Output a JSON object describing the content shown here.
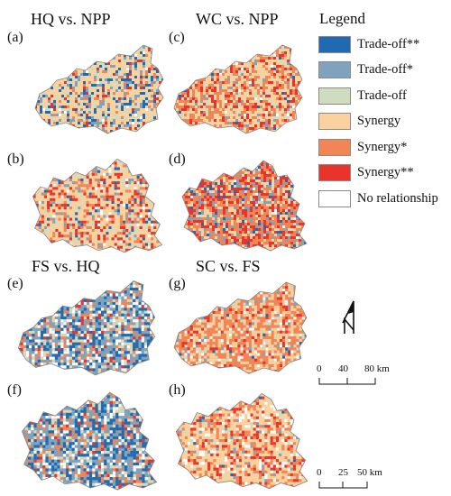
{
  "group_titles": {
    "hq_npp": "HQ vs. NPP",
    "wc_npp": "WC vs. NPP",
    "fs_hq": "FS vs. HQ",
    "sc_fs": "SC vs. FS"
  },
  "panels": [
    {
      "id": "a",
      "label": "(a)",
      "shape": "A",
      "mix": [
        0.12,
        0.12,
        0.16,
        0.45,
        0.08,
        0.04,
        0.03
      ]
    },
    {
      "id": "b",
      "label": "(b)",
      "shape": "B",
      "mix": [
        0.05,
        0.05,
        0.12,
        0.48,
        0.14,
        0.13,
        0.03
      ]
    },
    {
      "id": "c",
      "label": "(c)",
      "shape": "A",
      "mix": [
        0.01,
        0.03,
        0.08,
        0.4,
        0.3,
        0.16,
        0.02
      ]
    },
    {
      "id": "d",
      "label": "(d)",
      "shape": "B",
      "mix": [
        0.05,
        0.1,
        0.06,
        0.14,
        0.36,
        0.27,
        0.02
      ]
    },
    {
      "id": "e",
      "label": "(e)",
      "shape": "A",
      "mix": [
        0.22,
        0.26,
        0.12,
        0.08,
        0.12,
        0.05,
        0.15
      ]
    },
    {
      "id": "f",
      "label": "(f)",
      "shape": "B",
      "mix": [
        0.26,
        0.28,
        0.08,
        0.06,
        0.14,
        0.04,
        0.14
      ]
    },
    {
      "id": "g",
      "label": "(g)",
      "shape": "A",
      "mix": [
        0.01,
        0.03,
        0.06,
        0.3,
        0.42,
        0.1,
        0.08
      ]
    },
    {
      "id": "h",
      "label": "(h)",
      "shape": "B",
      "mix": [
        0.01,
        0.02,
        0.05,
        0.46,
        0.24,
        0.12,
        0.1
      ]
    }
  ],
  "legend": {
    "title": "Legend",
    "items": [
      {
        "label": "Trade-off**",
        "color": "#1f6ab0"
      },
      {
        "label": "Trade-off*",
        "color": "#7fa3be"
      },
      {
        "label": "Trade-off",
        "color": "#cfdcc0"
      },
      {
        "label": "Synergy",
        "color": "#fbd19e"
      },
      {
        "label": "Synergy*",
        "color": "#f28555"
      },
      {
        "label": "Synergy**",
        "color": "#e8342a"
      },
      {
        "label": "No relationship",
        "color": "#ffffff"
      }
    ]
  },
  "north_arrow": {
    "icon": "north-arrow-icon"
  },
  "scale_bars": [
    {
      "ticks": [
        "0",
        "40",
        "80 km"
      ]
    },
    {
      "ticks": [
        "0",
        "25",
        "50 km"
      ]
    }
  ]
}
